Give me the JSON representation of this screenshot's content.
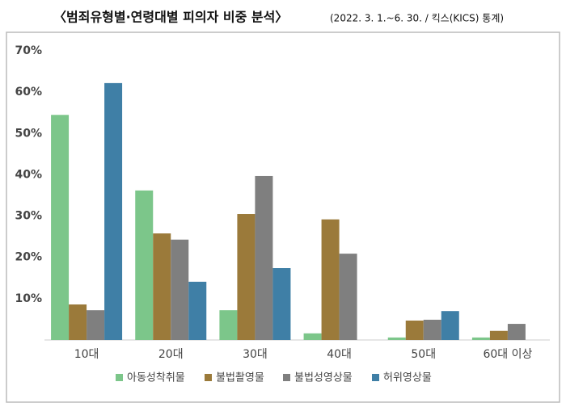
{
  "chart_data": {
    "type": "bar",
    "title": "〈범죄유형별·연령대별 피의자 비중 분석〉",
    "subtitle": "(2022. 3. 1.~6. 30. / 킥스(KICS) 통계)",
    "categories": [
      "10대",
      "20대",
      "30대",
      "40대",
      "50대",
      "60대 이상"
    ],
    "series": [
      {
        "name": "아동성착취물",
        "color": "#7cc68a",
        "values": [
          54.5,
          36.2,
          7.2,
          1.6,
          0.6,
          0.6
        ]
      },
      {
        "name": "불법촬영물",
        "color": "#9b7a3a",
        "values": [
          8.6,
          25.8,
          30.5,
          29.2,
          4.7,
          2.2
        ]
      },
      {
        "name": "불법성영상물",
        "color": "#7f7f7f",
        "values": [
          7.2,
          24.3,
          39.7,
          20.9,
          4.9,
          3.9
        ]
      },
      {
        "name": "허위영상물",
        "color": "#3f7fa6",
        "values": [
          62.2,
          14.1,
          17.4,
          null,
          7.0,
          null
        ]
      }
    ],
    "ylim": [
      0,
      70
    ],
    "yticks": [
      {
        "value": 10,
        "label": "10%"
      },
      {
        "value": 20,
        "label": "20%"
      },
      {
        "value": 30,
        "label": "30%"
      },
      {
        "value": 40,
        "label": "40%"
      },
      {
        "value": 50,
        "label": "50%"
      },
      {
        "value": 60,
        "label": "60%"
      },
      {
        "value": 70,
        "label": "70%"
      }
    ],
    "grid": false
  }
}
